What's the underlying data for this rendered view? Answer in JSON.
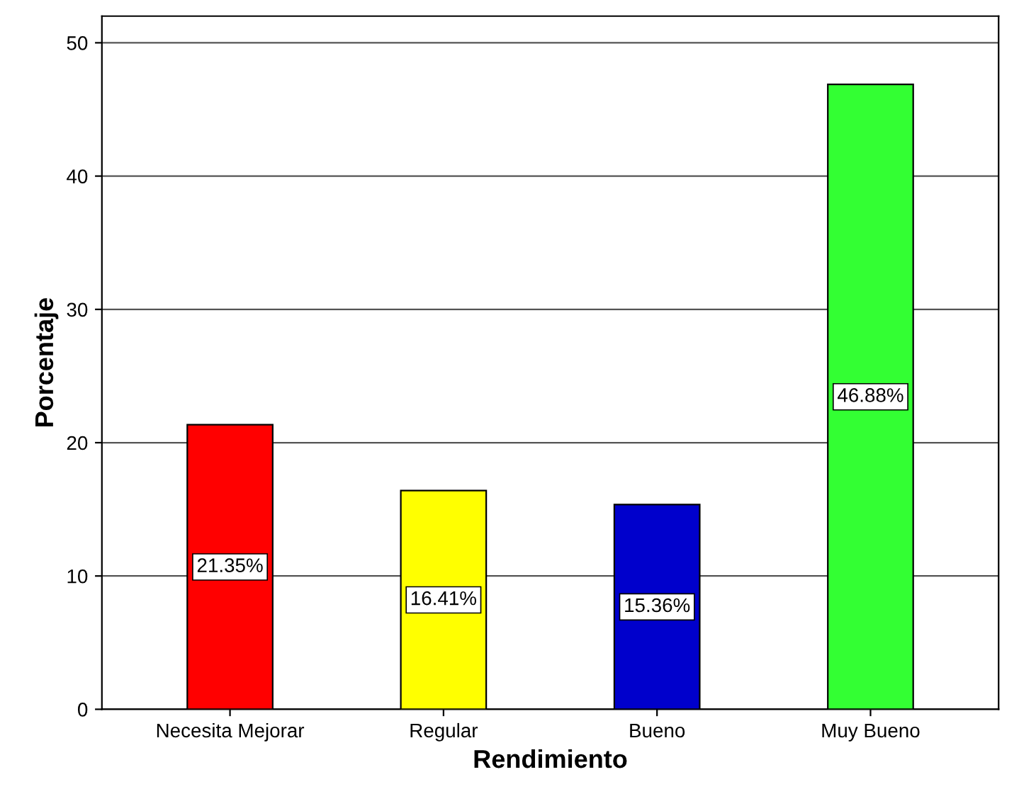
{
  "chart_data": {
    "type": "bar",
    "xlabel": "Rendimiento",
    "ylabel": "Porcentaje",
    "categories": [
      "Necesita Mejorar",
      "Regular",
      "Bueno",
      "Muy Bueno"
    ],
    "values": [
      21.35,
      16.41,
      15.36,
      46.88
    ],
    "colors": [
      "#ff0000",
      "#ffff00",
      "#0000cc",
      "#33ff33"
    ],
    "value_labels": [
      "21.35%",
      "16.41%",
      "15.36%",
      "46.88%"
    ],
    "ylim": [
      0,
      52
    ],
    "yticks": [
      0,
      10,
      20,
      30,
      40,
      50
    ],
    "grid": "y"
  }
}
